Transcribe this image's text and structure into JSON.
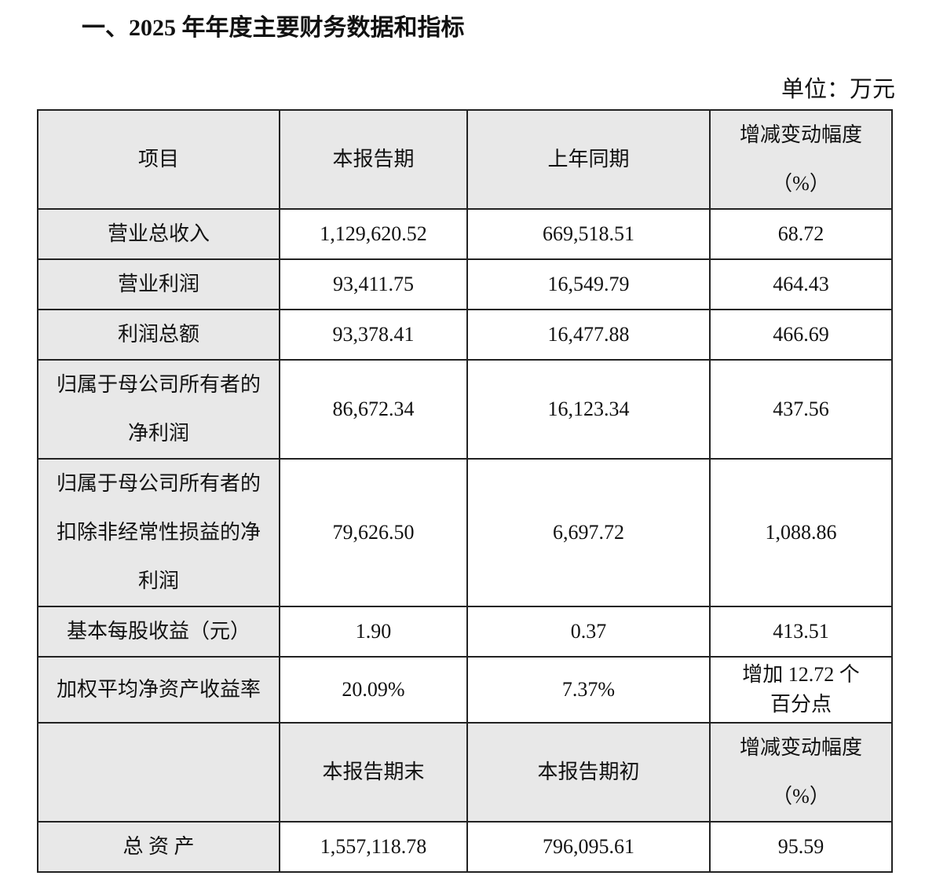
{
  "title": "一、2025 年年度主要财务数据和指标",
  "unit": "单位：万元",
  "table": {
    "header": [
      "项目",
      "本报告期",
      "上年同期",
      "增减变动幅度（%）"
    ],
    "rows": [
      [
        "营业总收入",
        "1,129,620.52",
        "669,518.51",
        "68.72"
      ],
      [
        "营业利润",
        "93,411.75",
        "16,549.79",
        "464.43"
      ],
      [
        "利润总额",
        "93,378.41",
        "16,477.88",
        "466.69"
      ],
      [
        "归属于母公司所有者的净利润",
        "86,672.34",
        "16,123.34",
        "437.56"
      ],
      [
        "归属于母公司所有者的扣除非经常性损益的净利润",
        "79,626.50",
        "6,697.72",
        "1,088.86"
      ],
      [
        "基本每股收益（元）",
        "1.90",
        "0.37",
        "413.51"
      ],
      [
        "加权平均净资产收益率",
        "20.09%",
        "7.37%",
        "增加 12.72 个百分点"
      ]
    ],
    "header2": [
      null,
      "本报告期末",
      "本报告期初",
      "增减变动幅度（%）"
    ],
    "rows2": [
      [
        "总 资 产",
        "1,557,118.78",
        "796,095.61",
        "95.59"
      ]
    ]
  }
}
